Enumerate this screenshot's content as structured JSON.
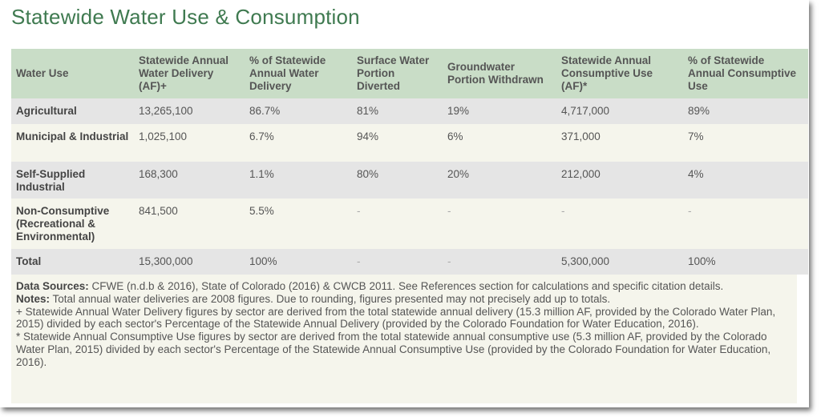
{
  "title": "Statewide Water Use & Consumption",
  "table": {
    "headers": [
      "Water Use",
      "Statewide Annual Water Delivery (AF)+",
      "% of Statewide Annual Water Delivery",
      "Surface Water Portion Diverted",
      "Groundwater Portion Withdrawn",
      "Statewide Annual Consumptive Use (AF)*",
      "% of Statewide Annual Consumptive Use"
    ],
    "rows": [
      [
        "Agricultural",
        "13,265,100",
        "86.7%",
        "81%",
        "19%",
        "4,717,000",
        "89%"
      ],
      [
        "Municipal & Industrial",
        "1,025,100",
        "6.7%",
        "94%",
        "6%",
        "371,000",
        "7%"
      ],
      [
        "Self-Supplied Industrial",
        "168,300",
        "1.1%",
        "80%",
        "20%",
        "212,000",
        "4%"
      ],
      [
        "Non-Consumptive (Recreational & Environmental)",
        "841,500",
        "5.5%",
        "-",
        "-",
        "-",
        "-"
      ],
      [
        "Total",
        "15,300,000",
        "100%",
        "-",
        "-",
        "5,300,000",
        "100%"
      ]
    ]
  },
  "notes": {
    "sources_label": "Data Sources:",
    "sources_text": " CFWE (n.d.b & 2016), State of Colorado (2016) & CWCB 2011. See References section for calculations and specific citation details.",
    "notes_label": "Notes:",
    "notes_text": " Total annual water deliveries are 2008 figures. Due to rounding, figures presented may not precisely add up to totals.",
    "plus_note": "+ Statewide Annual Water Delivery figures by sector are derived from the total statewide annual delivery (15.3 million AF, provided by the Colorado Water Plan, 2015) divided by each sector's Percentage of the Statewide Annual Delivery (provided by the Colorado Foundation for Water Education, 2016).",
    "star_note": "* Statewide Annual Consumptive Use figures by sector are derived from the total statewide annual consumptive use (5.3 million AF, provided by the Colorado Water Plan, 2015) divided by each sector's Percentage of the Statewide Annual Consumptive Use (provided by the Colorado Foundation for Water Education, 2016)."
  },
  "colors": {
    "title": "#3f7a50",
    "header_bg": "#c9ddc7",
    "row_gray": "#e5e5e5",
    "row_cream": "#f5f5ec"
  }
}
